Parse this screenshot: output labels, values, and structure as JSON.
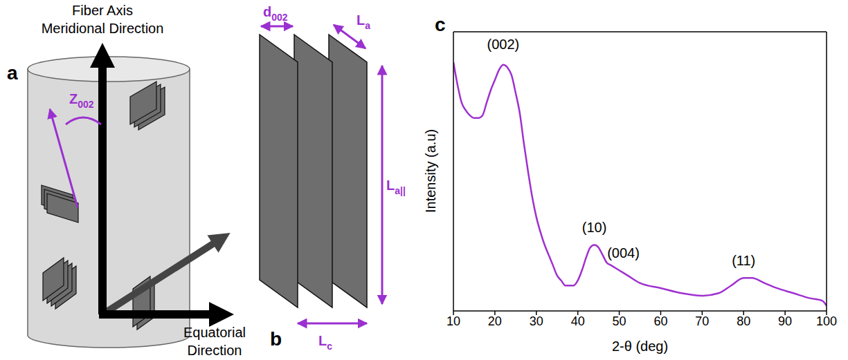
{
  "panel_a": {
    "letter": "a",
    "axis_label": [
      "Fiber Axis",
      "Meridional Direction"
    ],
    "equatorial_label": [
      "Equatorial",
      "Direction"
    ],
    "angle_label": {
      "main": "Z",
      "sub": "002"
    }
  },
  "panel_b": {
    "letter": "b",
    "spacing": {
      "main": "d",
      "sub": "002"
    },
    "width": {
      "main": "L",
      "sub": "a"
    },
    "height": {
      "main": "L",
      "sub": "a||"
    },
    "stack": {
      "main": "L",
      "sub": "c"
    }
  },
  "panel_c": {
    "letter": "c"
  },
  "chart_data": {
    "type": "line",
    "x_label": "2-θ (deg)",
    "y_label": "Intensity (a.u)",
    "x": [
      10,
      11,
      12,
      13,
      14,
      15,
      16,
      17,
      18,
      19,
      20,
      21,
      22,
      23,
      24,
      25,
      26,
      27,
      28,
      29,
      30,
      31,
      32,
      33,
      34,
      35,
      36,
      37,
      38,
      39,
      40,
      41,
      42,
      43,
      44,
      45,
      46,
      47,
      48,
      50,
      52,
      55,
      60,
      65,
      70,
      74,
      77,
      80,
      82,
      85,
      88,
      92,
      96,
      99,
      100
    ],
    "values": [
      98,
      89,
      82,
      79,
      77,
      76,
      76,
      77,
      82,
      87,
      91,
      95,
      97,
      96,
      93,
      86,
      78,
      66,
      55,
      45,
      37,
      31,
      26,
      22,
      18,
      14,
      12,
      10,
      10,
      10,
      12,
      16,
      21,
      25,
      26,
      25,
      22,
      19,
      18,
      16,
      14,
      11,
      9,
      7,
      6,
      7,
      10,
      13,
      13,
      11,
      9,
      7,
      5,
      4,
      2
    ],
    "color": "#a030d0",
    "xlim": [
      10,
      100
    ],
    "xticks": [
      10,
      20,
      30,
      40,
      50,
      60,
      70,
      80,
      90,
      100
    ],
    "ylim": [
      0,
      110
    ],
    "tick_labels": "x",
    "annotations": [
      {
        "text": "(002)",
        "x": 22,
        "y": 105
      },
      {
        "text": "(10)",
        "x": 44,
        "y": 33
      },
      {
        "text": "(004)",
        "x": 51,
        "y": 23
      },
      {
        "text": "(11)",
        "x": 80,
        "y": 20
      }
    ]
  }
}
